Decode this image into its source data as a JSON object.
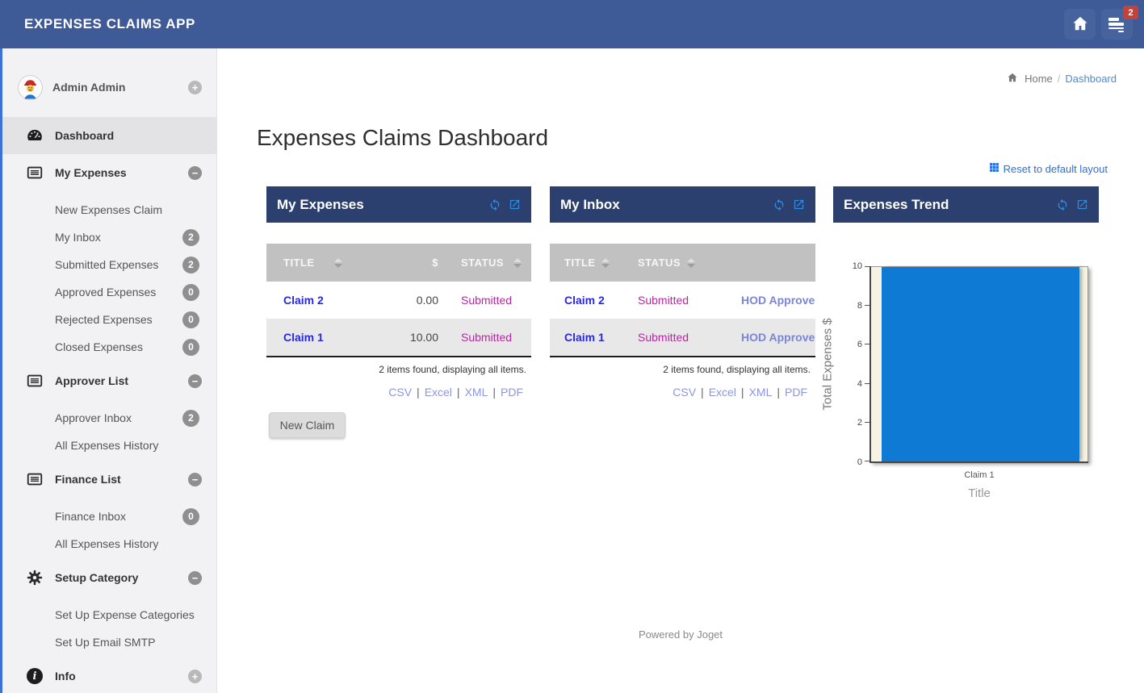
{
  "app": {
    "title": "EXPENSES CLAIMS APP"
  },
  "navbar": {
    "inbox_badge": "2"
  },
  "breadcrumb": {
    "home": "Home",
    "separator": "/",
    "current": "Dashboard"
  },
  "page": {
    "title": "Expenses Claims Dashboard",
    "reset_layout": "Reset to default layout",
    "new_claim": "New Claim",
    "footer": "Powered by Joget"
  },
  "sidebar": {
    "user": {
      "name": "Admin Admin"
    },
    "toggles": {
      "minus": "−",
      "plus": "+"
    },
    "items": [
      {
        "label": "Dashboard"
      },
      {
        "label": "My Expenses"
      },
      {
        "label": "New Expenses Claim"
      },
      {
        "label": "My Inbox",
        "badge": "2"
      },
      {
        "label": "Submitted Expenses",
        "badge": "2"
      },
      {
        "label": "Approved Expenses",
        "badge": "0"
      },
      {
        "label": "Rejected Expenses",
        "badge": "0"
      },
      {
        "label": "Closed Expenses",
        "badge": "0"
      },
      {
        "label": "Approver List"
      },
      {
        "label": "Approver Inbox",
        "badge": "2"
      },
      {
        "label": "All Expenses History"
      },
      {
        "label": "Finance List"
      },
      {
        "label": "Finance Inbox",
        "badge": "0"
      },
      {
        "label": "All Expenses History"
      },
      {
        "label": "Setup Category"
      },
      {
        "label": "Set Up Expense Categories"
      },
      {
        "label": "Set Up Email SMTP"
      },
      {
        "label": "Info"
      }
    ]
  },
  "panels": {
    "my_expenses": {
      "title": "My Expenses",
      "columns": [
        "TITLE",
        "$",
        "STATUS"
      ],
      "rows": [
        {
          "title": "Claim 2",
          "amount": "0.00",
          "status": "Submitted"
        },
        {
          "title": "Claim 1",
          "amount": "10.00",
          "status": "Submitted"
        }
      ],
      "summary": "2 items found, displaying all items.",
      "exports": [
        "CSV",
        "Excel",
        "XML",
        "PDF"
      ]
    },
    "my_inbox": {
      "title": "My Inbox",
      "columns": [
        "TITLE",
        "STATUS"
      ],
      "rows": [
        {
          "title": "Claim 2",
          "status": "Submitted",
          "action": "HOD Approve"
        },
        {
          "title": "Claim 1",
          "status": "Submitted",
          "action": "HOD Approve"
        }
      ],
      "summary": "2 items found, displaying all items.",
      "exports": [
        "CSV",
        "Excel",
        "XML",
        "PDF"
      ]
    },
    "expenses_trend": {
      "title": "Expenses Trend"
    }
  },
  "ui": {
    "pipe": "|"
  },
  "chart_data": {
    "type": "bar",
    "categories": [
      "Claim 1"
    ],
    "values": [
      10
    ],
    "series": [
      {
        "name": "Total Expenses $",
        "values": [
          10
        ]
      }
    ],
    "title": "",
    "xlabel": "Title",
    "ylabel": "Total Expenses $",
    "ylim": [
      0,
      10
    ],
    "yticks": [
      "0",
      "2",
      "4",
      "6",
      "8",
      "10"
    ],
    "grid": false,
    "legend": "none",
    "bar_color": "#0e7ad3",
    "plot_background": "#f7f2e1"
  },
  "colors": {
    "navbar": "#3e5b98",
    "panel_header": "#2b406e",
    "sidebar_accent": "#3a72d6",
    "claim_link": "#2929d6",
    "status_submitted": "#b5289e",
    "action_link": "#7b85d6",
    "export_link": "#8d96df",
    "badge_red": "#c4423a",
    "bar_blue": "#0e7ad3"
  }
}
